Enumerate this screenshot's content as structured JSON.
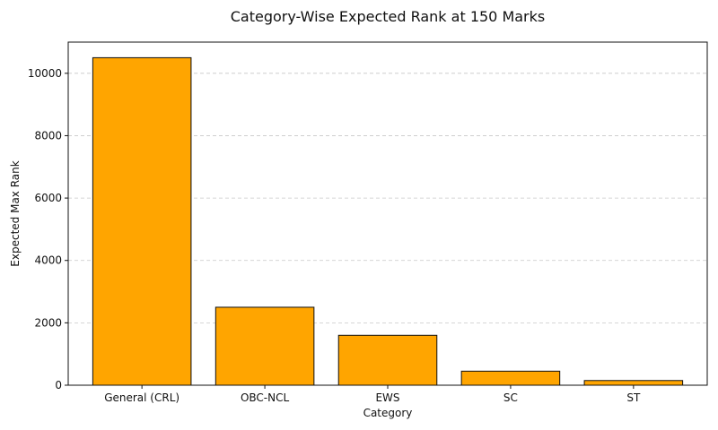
{
  "chart_data": {
    "type": "bar",
    "title": "Category-Wise Expected Rank at 150 Marks",
    "xlabel": "Category",
    "ylabel": "Expected Max Rank",
    "categories": [
      "General (CRL)",
      "OBC-NCL",
      "EWS",
      "SC",
      "ST"
    ],
    "values": [
      10500,
      2500,
      1600,
      450,
      150
    ],
    "ylim": [
      0,
      11000
    ],
    "yticks": [
      0,
      2000,
      4000,
      6000,
      8000,
      10000
    ],
    "grid": "y-dashed",
    "bar_color": "#FFA500",
    "edge_color": "#111111"
  }
}
